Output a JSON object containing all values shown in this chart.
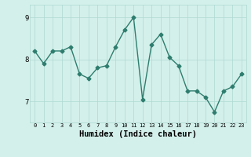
{
  "x": [
    0,
    1,
    2,
    3,
    4,
    5,
    6,
    7,
    8,
    9,
    10,
    11,
    12,
    13,
    14,
    15,
    16,
    17,
    18,
    19,
    20,
    21,
    22,
    23
  ],
  "y": [
    8.2,
    7.9,
    8.2,
    8.2,
    8.3,
    7.65,
    7.55,
    7.8,
    7.85,
    8.3,
    8.7,
    9.0,
    7.05,
    8.35,
    8.6,
    8.05,
    7.85,
    7.25,
    7.25,
    7.1,
    6.75,
    7.25,
    7.35,
    7.65
  ],
  "xlabel": "Humidex (Indice chaleur)",
  "ylim": [
    6.5,
    9.3
  ],
  "xlim": [
    -0.5,
    23.5
  ],
  "yticks": [
    7,
    8,
    9
  ],
  "xticks": [
    0,
    1,
    2,
    3,
    4,
    5,
    6,
    7,
    8,
    9,
    10,
    11,
    12,
    13,
    14,
    15,
    16,
    17,
    18,
    19,
    20,
    21,
    22,
    23
  ],
  "line_color": "#2e7d6e",
  "bg_color": "#d4f0eb",
  "grid_color": "#aed8d2",
  "marker": "D",
  "marker_size": 2.5,
  "line_width": 1.0,
  "xlabel_fontsize": 7.5,
  "tick_fontsize_x": 5.0,
  "tick_fontsize_y": 6.5
}
